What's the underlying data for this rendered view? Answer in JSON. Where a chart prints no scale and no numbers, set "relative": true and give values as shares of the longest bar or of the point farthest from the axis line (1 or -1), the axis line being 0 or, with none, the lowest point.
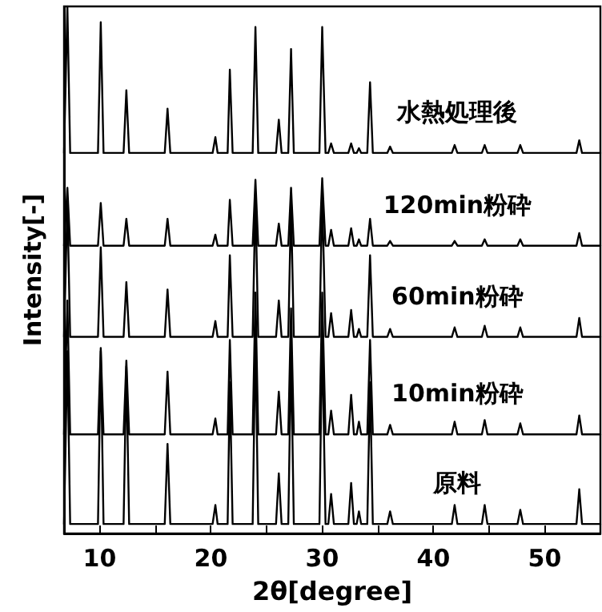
{
  "chart_data": {
    "type": "line",
    "xlabel": "2θ[degree]",
    "ylabel": "Intensity[-]",
    "relative": true,
    "tick_labels": "x",
    "marker": "none",
    "line_style": "solid",
    "grid": false,
    "legend": false,
    "xlim": [
      6.8,
      55
    ],
    "xticks": [
      10,
      {
        "value": 15,
        "label": null
      },
      20,
      {
        "value": 25,
        "label": null
      },
      30,
      {
        "value": 35,
        "label": null
      },
      40,
      {
        "value": 45,
        "label": null
      },
      50
    ],
    "x": [
      6.8,
      6.85,
      7.1,
      7.35,
      9.85,
      10.1,
      10.35,
      12.15,
      12.4,
      12.65,
      15.85,
      16.1,
      16.35,
      20.15,
      20.4,
      20.6,
      21.5,
      21.7,
      21.95,
      23.75,
      24.0,
      24.25,
      25.85,
      26.1,
      26.35,
      26.95,
      27.2,
      27.45,
      29.75,
      30.0,
      30.3,
      30.55,
      30.8,
      31.05,
      32.35,
      32.6,
      32.85,
      33.1,
      33.3,
      33.5,
      34.05,
      34.3,
      34.55,
      35.85,
      36.1,
      36.35,
      41.65,
      41.9,
      42.15,
      44.35,
      44.6,
      44.85,
      47.55,
      47.8,
      48.05,
      52.85,
      53.1,
      53.35,
      55
    ],
    "series": [
      {
        "name": "水熱処理後",
        "color": "#000000",
        "values": [
          0.722,
          0.722,
          1.0,
          0.722,
          0.722,
          0.97,
          0.722,
          0.722,
          0.841,
          0.722,
          0.722,
          0.806,
          0.722,
          0.722,
          0.752,
          0.722,
          0.722,
          0.88,
          0.722,
          0.722,
          0.961,
          0.722,
          0.722,
          0.785,
          0.722,
          0.722,
          0.919,
          0.722,
          0.722,
          0.961,
          0.722,
          0.722,
          0.74,
          0.722,
          0.722,
          0.74,
          0.722,
          0.722,
          0.731,
          0.722,
          0.722,
          0.856,
          0.722,
          0.722,
          0.734,
          0.722,
          0.722,
          0.737,
          0.722,
          0.722,
          0.737,
          0.722,
          0.722,
          0.737,
          0.722,
          0.722,
          0.746,
          0.722,
          0.722
        ]
      },
      {
        "name": "120min粉砕",
        "color": "#000000",
        "values": [
          0.546,
          0.546,
          0.656,
          0.546,
          0.546,
          0.627,
          0.546,
          0.546,
          0.597,
          0.546,
          0.546,
          0.597,
          0.546,
          0.546,
          0.567,
          0.546,
          0.546,
          0.633,
          0.546,
          0.546,
          0.671,
          0.546,
          0.546,
          0.588,
          0.546,
          0.546,
          0.656,
          0.546,
          0.546,
          0.674,
          0.546,
          0.546,
          0.576,
          0.546,
          0.546,
          0.579,
          0.546,
          0.546,
          0.558,
          0.546,
          0.546,
          0.597,
          0.546,
          0.546,
          0.555,
          0.546,
          0.546,
          0.555,
          0.546,
          0.546,
          0.558,
          0.546,
          0.546,
          0.558,
          0.546,
          0.546,
          0.57,
          0.546,
          0.546
        ]
      },
      {
        "name": "60min粉砕",
        "color": "#000000",
        "values": [
          0.373,
          0.373,
          0.627,
          0.373,
          0.373,
          0.543,
          0.373,
          0.373,
          0.477,
          0.373,
          0.373,
          0.463,
          0.373,
          0.373,
          0.403,
          0.373,
          0.373,
          0.528,
          0.373,
          0.373,
          0.642,
          0.373,
          0.373,
          0.442,
          0.373,
          0.373,
          0.627,
          0.373,
          0.373,
          0.642,
          0.373,
          0.373,
          0.418,
          0.373,
          0.373,
          0.424,
          0.373,
          0.373,
          0.388,
          0.373,
          0.373,
          0.528,
          0.373,
          0.373,
          0.388,
          0.373,
          0.373,
          0.391,
          0.373,
          0.373,
          0.394,
          0.373,
          0.373,
          0.391,
          0.373,
          0.373,
          0.409,
          0.373,
          0.373
        ]
      },
      {
        "name": "10min粉砕",
        "color": "#000000",
        "values": [
          0.188,
          0.188,
          0.442,
          0.188,
          0.188,
          0.352,
          0.188,
          0.188,
          0.328,
          0.188,
          0.188,
          0.307,
          0.188,
          0.188,
          0.218,
          0.188,
          0.188,
          0.367,
          0.188,
          0.188,
          0.457,
          0.188,
          0.188,
          0.269,
          0.188,
          0.188,
          0.427,
          0.188,
          0.188,
          0.457,
          0.188,
          0.188,
          0.233,
          0.188,
          0.188,
          0.263,
          0.188,
          0.188,
          0.212,
          0.188,
          0.188,
          0.367,
          0.188,
          0.188,
          0.206,
          0.188,
          0.188,
          0.212,
          0.188,
          0.188,
          0.215,
          0.188,
          0.188,
          0.209,
          0.188,
          0.188,
          0.224,
          0.188,
          0.188
        ]
      },
      {
        "name": "原料",
        "color": "#000000",
        "values": [
          0.018,
          0.018,
          0.346,
          0.018,
          0.018,
          0.346,
          0.018,
          0.018,
          0.317,
          0.018,
          0.018,
          0.17,
          0.018,
          0.018,
          0.054,
          0.018,
          0.018,
          0.287,
          0.018,
          0.018,
          0.376,
          0.018,
          0.018,
          0.114,
          0.018,
          0.018,
          0.346,
          0.018,
          0.018,
          0.376,
          0.018,
          0.018,
          0.075,
          0.018,
          0.018,
          0.096,
          0.018,
          0.018,
          0.042,
          0.018,
          0.018,
          0.287,
          0.018,
          0.018,
          0.042,
          0.018,
          0.018,
          0.054,
          0.018,
          0.018,
          0.054,
          0.018,
          0.018,
          0.045,
          0.018,
          0.018,
          0.084,
          0.018,
          0.018
        ]
      }
    ]
  }
}
